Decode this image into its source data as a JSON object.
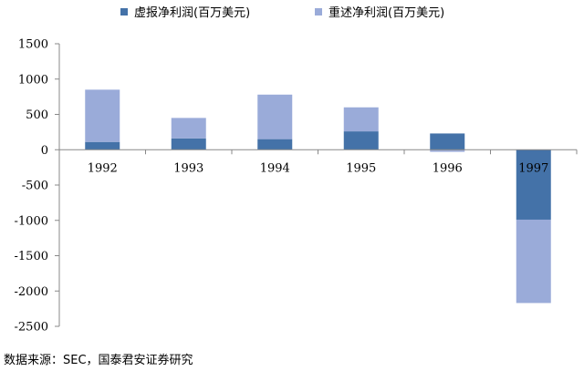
{
  "chart_data": {
    "type": "bar",
    "stacked": true,
    "categories": [
      "1992",
      "1993",
      "1994",
      "1995",
      "1996",
      "1997"
    ],
    "series": [
      {
        "name": "虚报净利润(百万美元)",
        "color": "#4472a8",
        "values": [
          110,
          160,
          150,
          260,
          230,
          -990
        ]
      },
      {
        "name": "重述净利润(百万美元)",
        "color": "#9aabd9",
        "values": [
          740,
          290,
          630,
          340,
          -30,
          -1180
        ]
      }
    ],
    "yticks": [
      1500,
      1000,
      500,
      0,
      -500,
      -1000,
      -1500,
      -2000,
      -2500
    ],
    "ylim": [
      -2500,
      1500
    ],
    "grid": false,
    "legend_position": "top"
  },
  "source": "数据来源：SEC，国泰君安证券研究"
}
